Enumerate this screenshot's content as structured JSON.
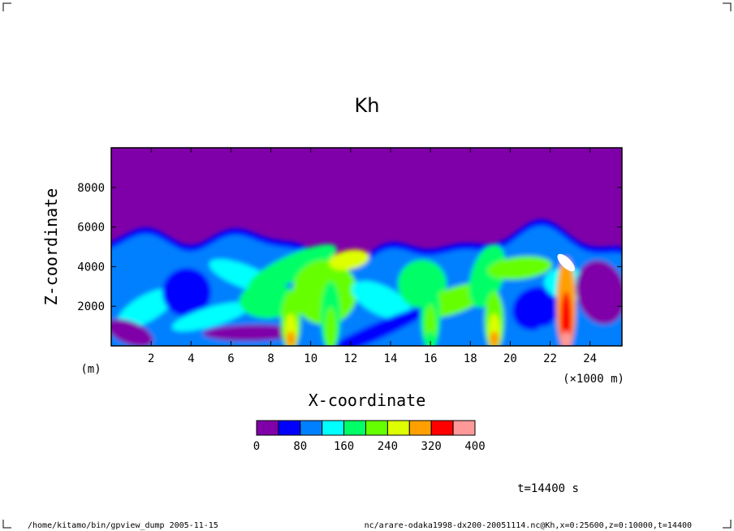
{
  "chart_data": {
    "type": "heatmap",
    "title": "Kh",
    "xlabel": "X-coordinate",
    "ylabel": "Z-coordinate",
    "x_unit": "(×1000 m)",
    "y_unit": "(m)",
    "xlim": [
      0,
      25.6
    ],
    "ylim": [
      0,
      10000
    ],
    "x_ticks": [
      2,
      4,
      6,
      8,
      10,
      12,
      14,
      16,
      18,
      20,
      22,
      24
    ],
    "y_ticks": [
      2000,
      4000,
      6000,
      8000
    ],
    "colorbar": {
      "levels": [
        0,
        40,
        80,
        120,
        160,
        200,
        240,
        280,
        320,
        360,
        400
      ],
      "tick_labels": [
        "0",
        "80",
        "160",
        "240",
        "320",
        "400"
      ],
      "colors": [
        "#7f00a8",
        "#0000ff",
        "#0080ff",
        "#00ffff",
        "#00ff66",
        "#66ff00",
        "#ddff00",
        "#ffa000",
        "#ff0000",
        "#ff9999"
      ]
    },
    "features": [
      {
        "x": 9.0,
        "z": 2500,
        "level": 280
      },
      {
        "x": 19.2,
        "z": 2500,
        "level": 280
      },
      {
        "x": 22.8,
        "z": 4200,
        "level": 400
      },
      {
        "x": 11.0,
        "z": 3000,
        "level": 200
      },
      {
        "x": 16.0,
        "z": 3200,
        "level": 160
      }
    ]
  },
  "annotations": {
    "time": "t=14400 s",
    "footer_left": "/home/kitamo/bin/gpview_dump  2005-11-15",
    "footer_right": "nc/arare-odaka1998-dx200-20051114.nc@Kh,x=0:25600,z=0:10000,t=14400"
  }
}
